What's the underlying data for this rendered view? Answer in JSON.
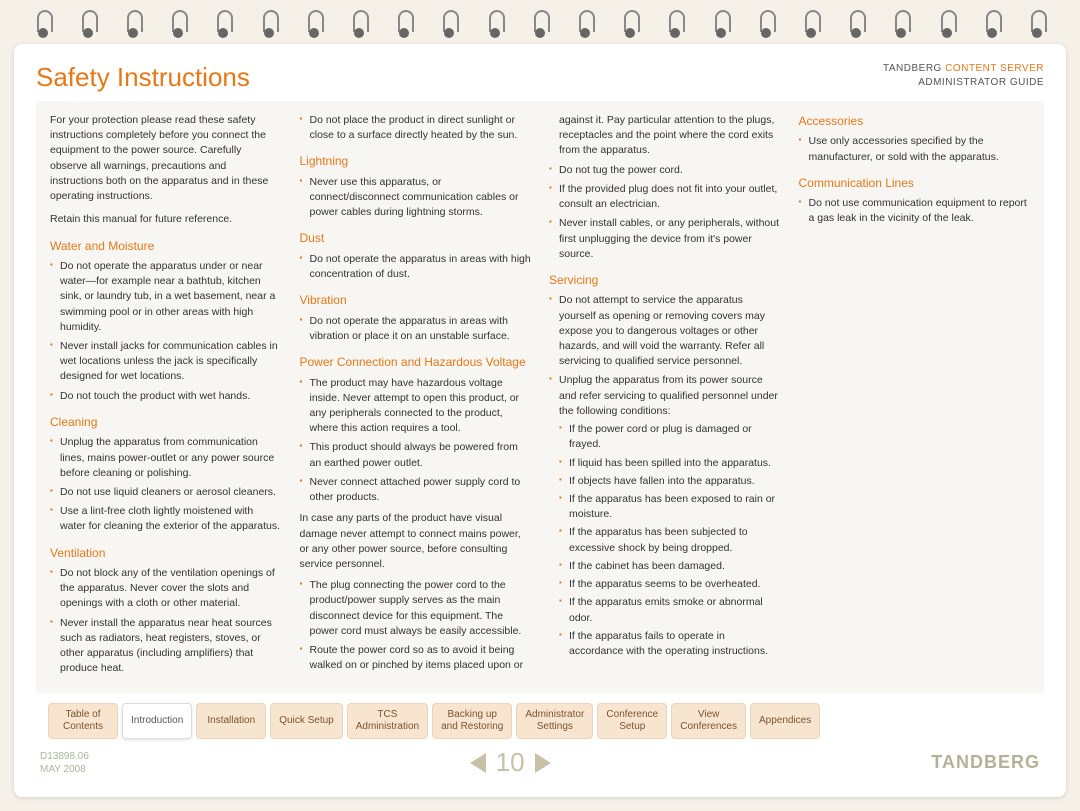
{
  "colors": {
    "accent": "#e67817",
    "page_bg": "#f5f0e8",
    "content_bg": "#f7f6f3",
    "text": "#333333",
    "tab_bg": "#f8e5d0",
    "tab_text": "#7a5530",
    "muted": "#c9c0a8",
    "meta": "#a8b89a"
  },
  "product": {
    "brand": "TANDBERG",
    "line1_suffix": "CONTENT SERVER",
    "line2": "ADMINISTRATOR GUIDE"
  },
  "title": "Safety Instructions",
  "intro": "For your protection please read these safety instructions completely before you connect the equipment to the power source. Carefully observe all warnings, precautions and instructions both on the apparatus and in these operating instructions.",
  "retain": "Retain this manual for future reference.",
  "sections": [
    {
      "title": "Water and Moisture",
      "items": [
        "Do not operate the apparatus under or near water—for example near a bathtub, kitchen sink, or laundry tub, in a wet basement, near a swimming pool or in other areas with high humidity.",
        "Never install jacks for communication cables in wet locations unless the jack is specifically designed for wet locations.",
        "Do not touch the product with wet hands."
      ]
    },
    {
      "title": "Cleaning",
      "items": [
        "Unplug the apparatus from communication lines, mains power-outlet or any power source before cleaning or polishing.",
        "Do not use liquid cleaners or aerosol cleaners.",
        "Use a lint-free cloth lightly moistened with water for cleaning the exterior of the apparatus."
      ]
    },
    {
      "title": "Ventilation",
      "items": [
        "Do not block any of the ventilation openings of the apparatus. Never cover the slots and openings with a cloth or other material.",
        "Never install the apparatus near heat sources such as radiators, heat registers, stoves, or other apparatus (including amplifiers) that produce heat.",
        "Do not place the product in direct sunlight or close to a surface directly heated by the sun."
      ]
    },
    {
      "title": "Lightning",
      "items": [
        "Never use this apparatus, or connect/disconnect communication cables or power cables during lightning storms."
      ]
    },
    {
      "title": "Dust",
      "items": [
        "Do not operate the apparatus in areas with high concentration of dust."
      ]
    },
    {
      "title": "Vibration",
      "items": [
        "Do not operate the apparatus in areas with vibration or place it on an unstable surface."
      ]
    },
    {
      "title": "Power Connection and Hazardous Voltage",
      "items": [
        "The product may have hazardous voltage inside. Never attempt to open this product, or any peripherals connected to the product, where this action requires a tool.",
        "This product should always be powered from an earthed power outlet.",
        "Never connect attached power supply cord to other products."
      ],
      "after_para": "In case any parts of the product have visual damage never attempt to connect mains power, or any other power source, before consulting service personnel.",
      "items2": [
        "The plug connecting the power cord to the product/power supply serves as the main disconnect device for this equipment. The power cord must always be easily accessible.",
        "Route the power cord so as to avoid it being walked on or pinched by items placed upon or against it. Pay particular attention to the plugs, receptacles and the point where the cord exits from the apparatus.",
        "Do not tug the power cord.",
        "If the provided plug does not fit into your outlet, consult an electrician.",
        "Never install cables, or any peripherals, without first unplugging the device from it's power source."
      ]
    },
    {
      "title": "Servicing",
      "items": [
        "Do not attempt to service the apparatus yourself as opening or removing covers may expose you to dangerous voltages or other hazards, and will void the warranty. Refer all servicing to qualified service personnel.",
        {
          "text": "Unplug the apparatus from its power source and refer servicing to qualified personnel under the following conditions:",
          "sub": [
            "If the power cord or plug is damaged or frayed.",
            "If liquid has been spilled into the apparatus.",
            "If objects have fallen into the apparatus.",
            "If the apparatus has been exposed to rain or moisture.",
            "If the apparatus has been subjected to excessive shock by being dropped.",
            "If the cabinet has been damaged.",
            "If the apparatus seems to be overheated.",
            "If the apparatus emits smoke or abnormal odor.",
            "If the apparatus fails to operate in accordance with the operating instructions."
          ]
        }
      ]
    },
    {
      "title": "Accessories",
      "items": [
        "Use only accessories specified by the manufacturer, or sold with the apparatus."
      ]
    },
    {
      "title": "Communication Lines",
      "items": [
        "Do not use communication equipment to report a gas leak in the vicinity of the leak."
      ]
    }
  ],
  "tabs": [
    {
      "label": "Table of Contents",
      "active": false
    },
    {
      "label": "Introduction",
      "active": true
    },
    {
      "label": "Installation",
      "active": false
    },
    {
      "label": "Quick Setup",
      "active": false
    },
    {
      "label": "TCS Administration",
      "active": false
    },
    {
      "label": "Backing up and Restoring",
      "active": false
    },
    {
      "label": "Administrator Settings",
      "active": false
    },
    {
      "label": "Conference Setup",
      "active": false
    },
    {
      "label": "View Conferences",
      "active": false
    },
    {
      "label": "Appendices",
      "active": false
    }
  ],
  "footer": {
    "doc_id": "D13898.06",
    "date": "MAY 2008",
    "page": "10",
    "logo": "TANDBERG"
  }
}
